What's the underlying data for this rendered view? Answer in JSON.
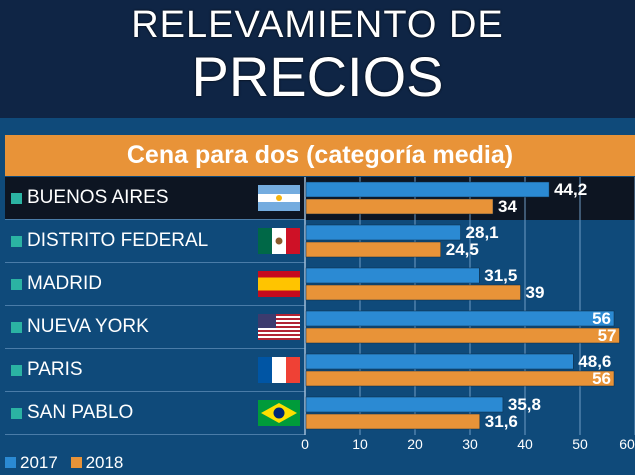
{
  "title_line1": "RELEVAMIENTO DE",
  "title_line2": "PRECIOS",
  "subtitle": "Cena para dos (categoría media)",
  "colors": {
    "2017": "#2b8ad3",
    "2018": "#e89338",
    "highlight": "#0d1522"
  },
  "chart_data": {
    "type": "bar",
    "orientation": "horizontal",
    "title": "Cena para dos (categoría media)",
    "categories": [
      "BUENOS AIRES",
      "DISTRITO FEDERAL",
      "MADRID",
      "NUEVA YORK",
      "PARIS",
      "SAN PABLO"
    ],
    "series": [
      {
        "name": "2017",
        "values": [
          44.2,
          28.1,
          31.5,
          56,
          48.6,
          35.8
        ],
        "labels": [
          "44,2",
          "28,1",
          "31,5",
          "56",
          "48,6",
          "35,8"
        ]
      },
      {
        "name": "2018",
        "values": [
          34,
          24.5,
          39,
          57,
          56,
          31.6
        ],
        "labels": [
          "34",
          "24,5",
          "39",
          "57",
          "56",
          "31,6"
        ]
      }
    ],
    "xlim": [
      0,
      60
    ],
    "xticks": [
      "0",
      "10",
      "20",
      "30",
      "40",
      "50",
      "60"
    ],
    "grid": true,
    "legend_position": "bottom-left"
  }
}
